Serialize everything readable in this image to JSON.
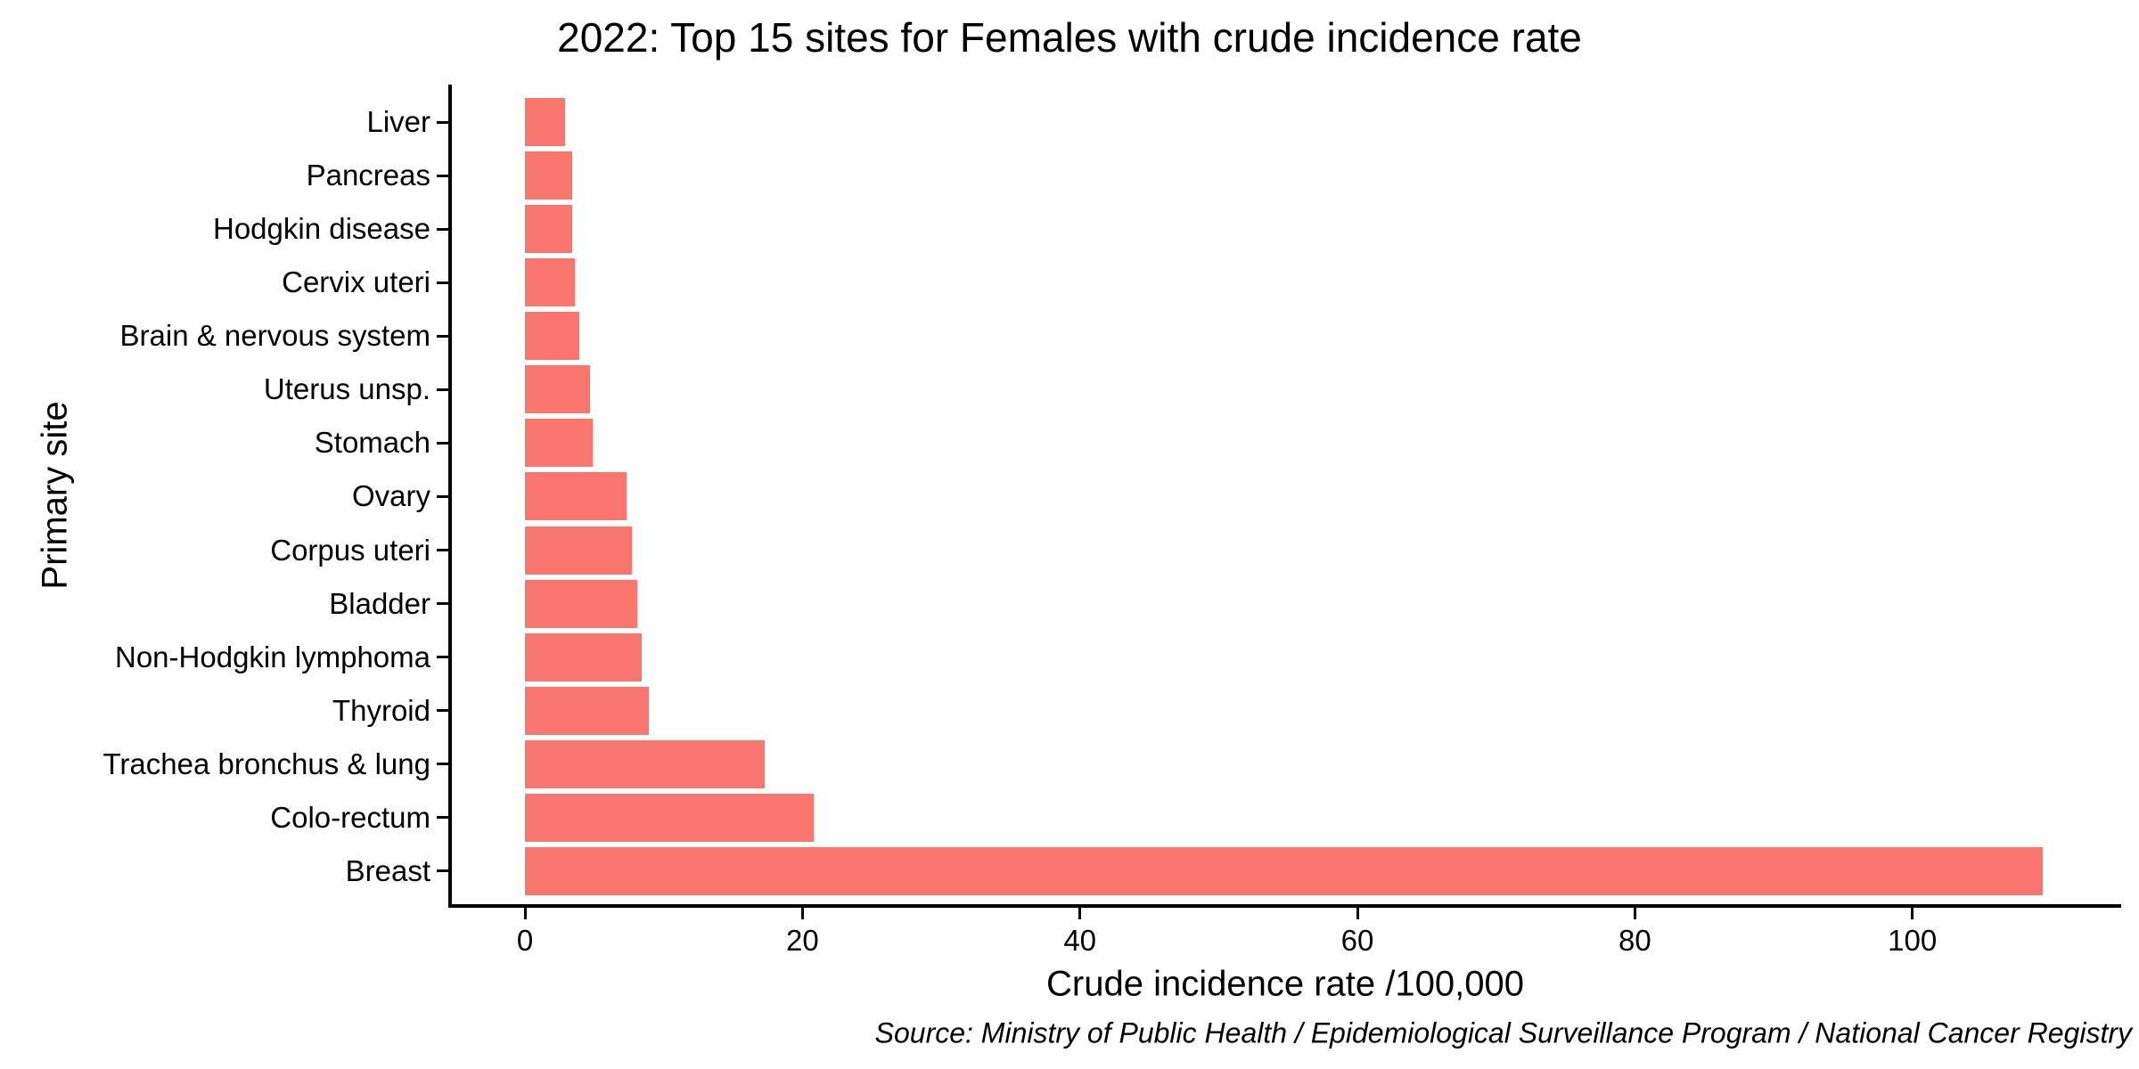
{
  "chart_data": {
    "type": "bar",
    "orientation": "horizontal",
    "title": "2022: Top 15 sites for Females with crude incidence rate",
    "xlabel": "Crude incidence rate /100,000",
    "ylabel": "Primary site",
    "categories": [
      "Liver",
      "Pancreas",
      "Hodgkin disease",
      "Cervix uteri",
      "Brain & nervous system",
      "Uterus unsp.",
      "Stomach",
      "Ovary",
      "Corpus uteri",
      "Bladder",
      "Non-Hodgkin lymphoma",
      "Thyroid",
      "Trachea bronchus & lung",
      "Colo-rectum",
      "Breast"
    ],
    "values": [
      2.9,
      3.4,
      3.4,
      3.6,
      3.9,
      4.7,
      4.9,
      7.3,
      7.7,
      8.1,
      8.4,
      8.9,
      17.3,
      20.8,
      109.4
    ],
    "xticks": [
      0,
      20,
      40,
      60,
      80,
      100
    ],
    "xlim": [
      0,
      115
    ],
    "grid": "off",
    "legend": "none",
    "bar_color": "#F8766D",
    "axis_color": "#000000",
    "source": "Source: Ministry of Public Health / Epidemiological Surveillance Program / National Cancer Registry"
  }
}
